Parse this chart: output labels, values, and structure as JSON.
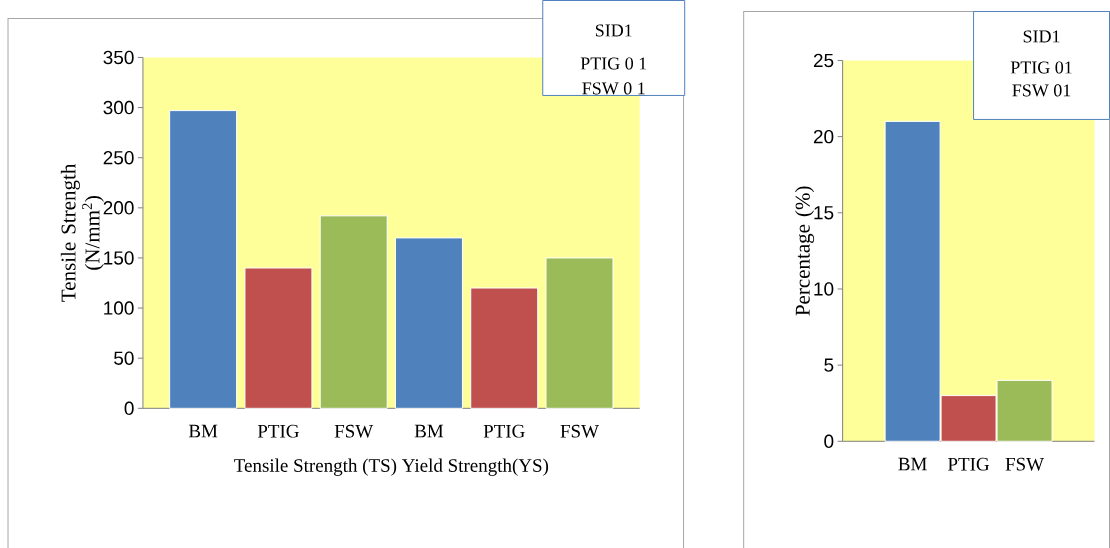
{
  "chart_data": [
    {
      "type": "bar",
      "ylabel": "Tensile Strength (N/mm$^{2}$)",
      "xlabel": "Tensile Strength (TS) Yield Strength(YS)",
      "categories": [
        "BM",
        "PTIG",
        "FSW",
        "BM",
        "PTIG",
        "FSW"
      ],
      "values": [
        297,
        140,
        192,
        170,
        120,
        150
      ],
      "colors": [
        "#4f81bd",
        "#c0504d",
        "#9bbb59",
        "#4f81bd",
        "#c0504d",
        "#9bbb59"
      ],
      "ylim": [
        0,
        350
      ],
      "yticks": [
        0,
        50,
        100,
        150,
        200,
        250,
        300,
        350
      ],
      "annotations": [
        "SID1",
        "PTIG 0 1",
        "FSW 0 1"
      ]
    },
    {
      "type": "bar",
      "ylabel": "Percentage (%)",
      "categories": [
        "BM",
        "PTIG",
        "FSW"
      ],
      "values": [
        21,
        3,
        4
      ],
      "colors": [
        "#4f81bd",
        "#c0504d",
        "#9bbb59"
      ],
      "ylim": [
        0,
        25
      ],
      "yticks": [
        0,
        5,
        10,
        15,
        20,
        25
      ],
      "annotations": [
        "SID1",
        "PTIG 01",
        "FSW 01"
      ]
    }
  ]
}
